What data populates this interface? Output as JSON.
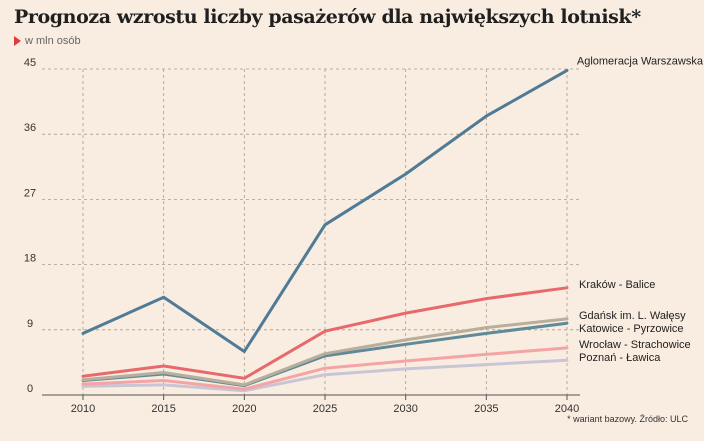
{
  "header": {
    "title": "Prognoza wzrostu liczby pasażerów dla największych lotnisk*",
    "subtitle": "w mln osób"
  },
  "footnote": "* wariant bazowy. Źródło: ULC",
  "chart_data": {
    "type": "line",
    "title": "Prognoza wzrostu liczby pasażerów dla największych lotnisk*",
    "subtitle": "w mln osób",
    "xlabel": "",
    "ylabel": "",
    "x": [
      2010,
      2015,
      2020,
      2025,
      2030,
      2035,
      2040
    ],
    "x_tick_labels": [
      "2010",
      "2015",
      "2020",
      "2025",
      "2030",
      "2035",
      "2040"
    ],
    "ylim": [
      0,
      45
    ],
    "y_ticks": [
      0,
      9,
      18,
      27,
      36,
      45
    ],
    "y_tick_labels": [
      "0",
      "9",
      "18",
      "27",
      "36",
      "45"
    ],
    "grid": true,
    "legend": "line-end labels",
    "series": [
      {
        "name": "Aglomeracja Warszawska",
        "color": "#4f7b96",
        "values": [
          8.5,
          13.5,
          6.0,
          23.5,
          30.5,
          38.5,
          44.8
        ]
      },
      {
        "name": "Kraków - Balice",
        "color": "#e8696b",
        "values": [
          2.6,
          4.0,
          2.3,
          8.8,
          11.3,
          13.3,
          14.8
        ]
      },
      {
        "name": "Gdańsk im. L. Wałęsy",
        "color": "#b8ae9c",
        "values": [
          2.1,
          3.1,
          1.4,
          5.7,
          7.6,
          9.3,
          10.5
        ]
      },
      {
        "name": "Katowice - Pyrzowice",
        "color": "#5e8a99",
        "values": [
          2.0,
          2.9,
          1.3,
          5.4,
          7.0,
          8.5,
          9.9
        ]
      },
      {
        "name": "Wrocław - Strachowice",
        "color": "#f4a4a4",
        "values": [
          1.5,
          2.0,
          0.8,
          3.7,
          4.7,
          5.6,
          6.5
        ]
      },
      {
        "name": "Poznań - Ławica",
        "color": "#c8c5d5",
        "values": [
          1.2,
          1.4,
          0.6,
          2.8,
          3.6,
          4.2,
          4.8
        ]
      }
    ]
  }
}
